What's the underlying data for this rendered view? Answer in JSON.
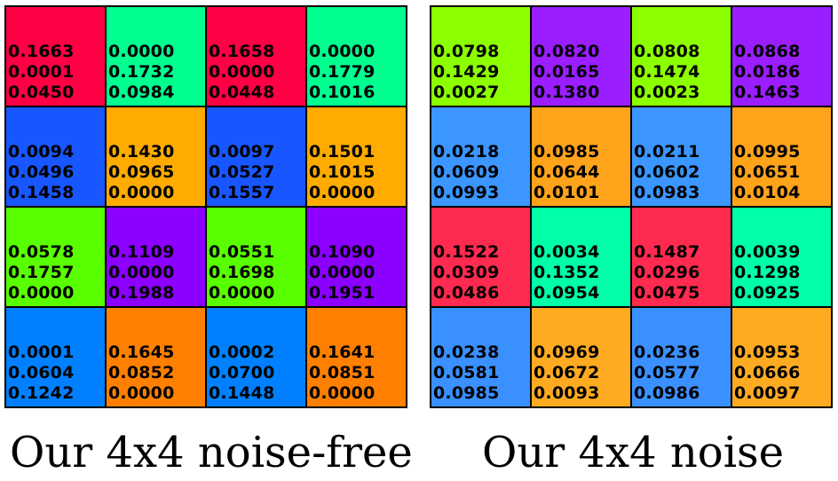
{
  "panels": [
    {
      "caption": "Our 4x4 noise-free",
      "cells": [
        {
          "color": "#ff0044",
          "values": [
            "0.1663",
            "0.0001",
            "0.0450"
          ]
        },
        {
          "color": "#00ff8f",
          "values": [
            "0.0000",
            "0.1732",
            "0.0984"
          ]
        },
        {
          "color": "#ff0044",
          "values": [
            "0.1658",
            "0.0000",
            "0.0448"
          ]
        },
        {
          "color": "#00ff8f",
          "values": [
            "0.0000",
            "0.1779",
            "0.1016"
          ]
        },
        {
          "color": "#1856ff",
          "values": [
            "0.0094",
            "0.0496",
            "0.1458"
          ]
        },
        {
          "color": "#ffab00",
          "values": [
            "0.1430",
            "0.0965",
            "0.0000"
          ]
        },
        {
          "color": "#1856ff",
          "values": [
            "0.0097",
            "0.0527",
            "0.1557"
          ]
        },
        {
          "color": "#ffab00",
          "values": [
            "0.1501",
            "0.1015",
            "0.0000"
          ]
        },
        {
          "color": "#59ff00",
          "values": [
            "0.0578",
            "0.1757",
            "0.0000"
          ]
        },
        {
          "color": "#8b00ff",
          "values": [
            "0.1109",
            "0.0000",
            "0.1988"
          ]
        },
        {
          "color": "#59ff00",
          "values": [
            "0.0551",
            "0.1698",
            "0.0000"
          ]
        },
        {
          "color": "#8b00ff",
          "values": [
            "0.1090",
            "0.0000",
            "0.1951"
          ]
        },
        {
          "color": "#0080ff",
          "values": [
            "0.0001",
            "0.0604",
            "0.1242"
          ]
        },
        {
          "color": "#ff8000",
          "values": [
            "0.1645",
            "0.0852",
            "0.0000"
          ]
        },
        {
          "color": "#0080ff",
          "values": [
            "0.0002",
            "0.0700",
            "0.1448"
          ]
        },
        {
          "color": "#ff8000",
          "values": [
            "0.1641",
            "0.0851",
            "0.0000"
          ]
        }
      ]
    },
    {
      "caption": "Our 4x4 noise",
      "cells": [
        {
          "color": "#8cff00",
          "values": [
            "0.0798",
            "0.1429",
            "0.0027"
          ]
        },
        {
          "color": "#9a1eff",
          "values": [
            "0.0820",
            "0.0165",
            "0.1380"
          ]
        },
        {
          "color": "#8cff00",
          "values": [
            "0.0808",
            "0.1474",
            "0.0023"
          ]
        },
        {
          "color": "#9a1eff",
          "values": [
            "0.0868",
            "0.0186",
            "0.1463"
          ]
        },
        {
          "color": "#3b96ff",
          "values": [
            "0.0218",
            "0.0609",
            "0.0993"
          ]
        },
        {
          "color": "#ffa31a",
          "values": [
            "0.0985",
            "0.0644",
            "0.0101"
          ]
        },
        {
          "color": "#3b96ff",
          "values": [
            "0.0211",
            "0.0602",
            "0.0983"
          ]
        },
        {
          "color": "#ffa31a",
          "values": [
            "0.0995",
            "0.0651",
            "0.0104"
          ]
        },
        {
          "color": "#ff2a4f",
          "values": [
            "0.1522",
            "0.0309",
            "0.0486"
          ]
        },
        {
          "color": "#00ffa6",
          "values": [
            "0.0034",
            "0.1352",
            "0.0954"
          ]
        },
        {
          "color": "#ff2a4f",
          "values": [
            "0.1487",
            "0.0296",
            "0.0475"
          ]
        },
        {
          "color": "#00ffa6",
          "values": [
            "0.0039",
            "0.1298",
            "0.0925"
          ]
        },
        {
          "color": "#3b90ff",
          "values": [
            "0.0238",
            "0.0581",
            "0.0985"
          ]
        },
        {
          "color": "#ffab22",
          "values": [
            "0.0969",
            "0.0672",
            "0.0093"
          ]
        },
        {
          "color": "#3b90ff",
          "values": [
            "0.0236",
            "0.0577",
            "0.0986"
          ]
        },
        {
          "color": "#ffab22",
          "values": [
            "0.0953",
            "0.0666",
            "0.0097"
          ]
        }
      ]
    }
  ]
}
